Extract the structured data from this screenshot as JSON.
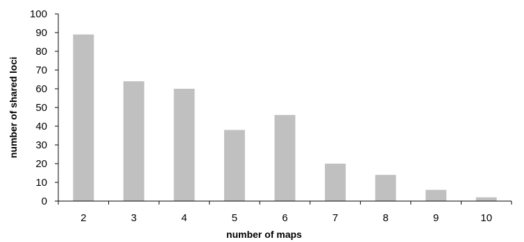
{
  "chart_data": {
    "type": "bar",
    "title": "",
    "xlabel": "number of maps",
    "ylabel": "number of shared loci",
    "categories": [
      "2",
      "3",
      "4",
      "5",
      "6",
      "7",
      "8",
      "9",
      "10"
    ],
    "values": [
      89,
      64,
      60,
      38,
      46,
      20,
      14,
      6,
      2
    ],
    "ylim": [
      0,
      100
    ],
    "yticks": [
      "0",
      "10",
      "20",
      "30",
      "40",
      "50",
      "60",
      "70",
      "80",
      "90",
      "100"
    ],
    "grid": false,
    "legend": "none",
    "bar_color": "#c0c0c0"
  }
}
